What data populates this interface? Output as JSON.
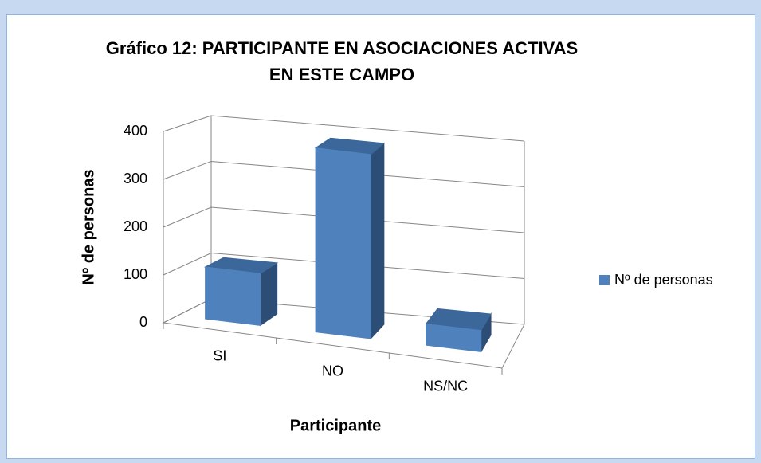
{
  "chart_data": {
    "type": "bar3d",
    "title": "Gráfico 12: PARTICIPANTE EN ASOCIACIONES ACTIVAS EN ESTE CAMPO",
    "x_label": "Participante",
    "y_label": "Nº de personas",
    "categories": [
      "SI",
      "NO",
      "NS/NC"
    ],
    "series": [
      {
        "name": "Nº de personas",
        "color": "#4f81bd",
        "values": [
          110,
          390,
          45
        ]
      }
    ],
    "ylim": [
      0,
      400
    ],
    "yticks": [
      0,
      100,
      200,
      300,
      400
    ],
    "grid": true,
    "legend": "right"
  }
}
